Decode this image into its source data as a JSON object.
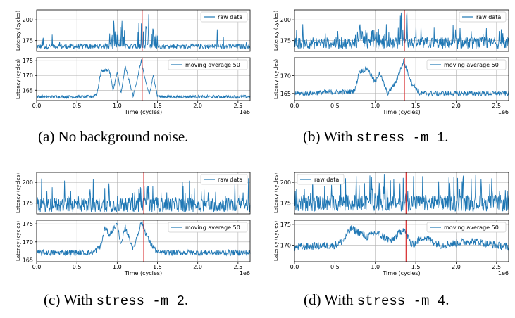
{
  "chart_data": [
    {
      "id": "a",
      "type": "line",
      "caption": {
        "label": "(a) No background noise.",
        "pre": "",
        "cmd": "",
        "post": ""
      },
      "xlabel": "Time (cycles)",
      "x_multiplier": "1e6",
      "xlim": [
        0,
        2.65
      ],
      "xticks": [
        0.0,
        0.5,
        1.0,
        1.5,
        2.0,
        2.5
      ],
      "xtick_labels": [
        "0.0",
        "0.5",
        "1.0",
        "1.5",
        "2.0",
        "2.5"
      ],
      "marker_x": 1.31,
      "top": {
        "ylabel": "Latency (cycles)",
        "ylim": [
          162,
          212
        ],
        "yticks": [
          175,
          200
        ],
        "legend": "raw data",
        "legend_pos": "top-right",
        "series": {
          "name": "raw data",
          "base": 168,
          "noise": 3,
          "bursts": [
            [
              0.06,
              0.09,
              180
            ],
            [
              0.9,
              1.1,
              200
            ],
            [
              1.25,
              1.4,
              210
            ],
            [
              1.42,
              1.5,
              190
            ]
          ],
          "spike_rate": 0.02,
          "spike_max": 190
        }
      },
      "bottom": {
        "ylabel": "Latency (cycles)",
        "ylim": [
          161.5,
          176
        ],
        "yticks": [
          165,
          170,
          175
        ],
        "legend": "moving average 50",
        "legend_pos": "top-right",
        "series": {
          "name": "moving average 50",
          "points": [
            [
              0,
              162.8
            ],
            [
              0.7,
              162.8
            ],
            [
              0.75,
              164
            ],
            [
              0.8,
              171.5
            ],
            [
              0.9,
              172
            ],
            [
              0.95,
              165
            ],
            [
              1.0,
              171
            ],
            [
              1.05,
              164
            ],
            [
              1.1,
              173
            ],
            [
              1.2,
              163
            ],
            [
              1.3,
              175
            ],
            [
              1.35,
              168
            ],
            [
              1.4,
              163.5
            ],
            [
              1.45,
              170
            ],
            [
              1.5,
              163
            ],
            [
              1.55,
              162.8
            ],
            [
              2.65,
              162.8
            ]
          ],
          "noise": 0.5
        }
      }
    },
    {
      "id": "b",
      "type": "line",
      "caption": {
        "label": "(b) With ",
        "pre": "(b) With ",
        "cmd": "stress -m 1",
        "post": "."
      },
      "xlabel": "Time (cycles)",
      "x_multiplier": "1e6",
      "xlim": [
        0,
        2.65
      ],
      "xticks": [
        0.0,
        0.5,
        1.0,
        1.5,
        2.0,
        2.5
      ],
      "xtick_labels": [
        "0.0",
        "0.5",
        "1.0",
        "1.5",
        "2.0",
        "2.5"
      ],
      "marker_x": 1.36,
      "top": {
        "ylabel": "Latency (cycles)",
        "ylim": [
          162,
          212
        ],
        "yticks": [
          175,
          200
        ],
        "legend": "raw data",
        "legend_pos": "top-right",
        "series": {
          "name": "raw data",
          "base": 172,
          "noise": 7,
          "bursts": [
            [
              0.75,
              1.05,
              190
            ],
            [
              1.3,
              1.4,
              210
            ]
          ],
          "spike_rate": 0.08,
          "spike_max": 195
        }
      },
      "bottom": {
        "ylabel": "Latency (cycles)",
        "ylim": [
          163,
          175
        ],
        "yticks": [
          165,
          170
        ],
        "legend": "moving average 50",
        "legend_pos": "top-right",
        "series": {
          "name": "moving average 50",
          "points": [
            [
              0,
              165
            ],
            [
              0.7,
              165.5
            ],
            [
              0.75,
              166
            ],
            [
              0.8,
              171
            ],
            [
              0.9,
              172
            ],
            [
              1.0,
              168
            ],
            [
              1.05,
              171
            ],
            [
              1.15,
              165
            ],
            [
              1.25,
              168
            ],
            [
              1.35,
              174
            ],
            [
              1.45,
              168
            ],
            [
              1.55,
              165
            ],
            [
              2.65,
              165
            ]
          ],
          "noise": 0.7
        }
      }
    },
    {
      "id": "c",
      "type": "line",
      "caption": {
        "label": "(c) With ",
        "pre": "(c) With ",
        "cmd": "stress -m 2",
        "post": "."
      },
      "xlabel": "Time (cycles)",
      "x_multiplier": "1e6",
      "xlim": [
        0,
        2.65
      ],
      "xticks": [
        0.0,
        0.5,
        1.0,
        1.5,
        2.0,
        2.5
      ],
      "xtick_labels": [
        "0.0",
        "0.5",
        "1.0",
        "1.5",
        "2.0",
        "2.5"
      ],
      "marker_x": 1.33,
      "top": {
        "ylabel": "Latency (cycles)",
        "ylim": [
          162,
          212
        ],
        "yticks": [
          175,
          200
        ],
        "legend": "raw data",
        "legend_pos": "top-right",
        "series": {
          "name": "raw data",
          "base": 173,
          "noise": 9,
          "bursts": [
            [
              1.25,
              1.4,
              205
            ]
          ],
          "spike_rate": 0.12,
          "spike_max": 205
        }
      },
      "bottom": {
        "ylabel": "Latency (cycles)",
        "ylim": [
          164.5,
          176
        ],
        "yticks": [
          165,
          170,
          175
        ],
        "legend": "moving average 50",
        "legend_pos": "top-right",
        "series": {
          "name": "moving average 50",
          "points": [
            [
              0,
              167
            ],
            [
              0.7,
              167
            ],
            [
              0.8,
              169
            ],
            [
              0.85,
              174
            ],
            [
              0.9,
              172
            ],
            [
              1.0,
              175
            ],
            [
              1.05,
              169
            ],
            [
              1.1,
              174
            ],
            [
              1.2,
              168
            ],
            [
              1.3,
              175.5
            ],
            [
              1.4,
              170
            ],
            [
              1.5,
              167
            ],
            [
              2.65,
              167
            ]
          ],
          "noise": 0.8
        }
      }
    },
    {
      "id": "d",
      "type": "line",
      "caption": {
        "label": "(d) With ",
        "pre": "(d) With ",
        "cmd": "stress -m 4",
        "post": "."
      },
      "xlabel": "Time (cycles)",
      "x_multiplier": "1e6",
      "xlim": [
        0,
        2.65
      ],
      "xticks": [
        0.0,
        0.5,
        1.0,
        1.5,
        2.0,
        2.5
      ],
      "xtick_labels": [
        "0.0",
        "0.5",
        "1.0",
        "1.5",
        "2.0",
        "2.5"
      ],
      "marker_x": 1.38,
      "top": {
        "ylabel": "Latency (cycles)",
        "ylim": [
          162,
          212
        ],
        "yticks": [
          175,
          200
        ],
        "legend": "raw data",
        "legend_pos": "top-left",
        "series": {
          "name": "raw data",
          "base": 175,
          "noise": 10,
          "bursts": [],
          "spike_rate": 0.15,
          "spike_max": 210
        }
      },
      "bottom": {
        "ylabel": "Latency (cycles)",
        "ylim": [
          166,
          176
        ],
        "yticks": [
          170,
          175
        ],
        "legend": "moving average 50",
        "legend_pos": "top-right",
        "series": {
          "name": "moving average 50",
          "points": [
            [
              0,
              169.5
            ],
            [
              0.5,
              170
            ],
            [
              0.6,
              171
            ],
            [
              0.7,
              174
            ],
            [
              0.9,
              172
            ],
            [
              1.0,
              173
            ],
            [
              1.2,
              171
            ],
            [
              1.35,
              174
            ],
            [
              1.45,
              170
            ],
            [
              1.6,
              172
            ],
            [
              1.8,
              170
            ],
            [
              2.2,
              171
            ],
            [
              2.65,
              169.5
            ]
          ],
          "noise": 0.9
        }
      }
    }
  ]
}
